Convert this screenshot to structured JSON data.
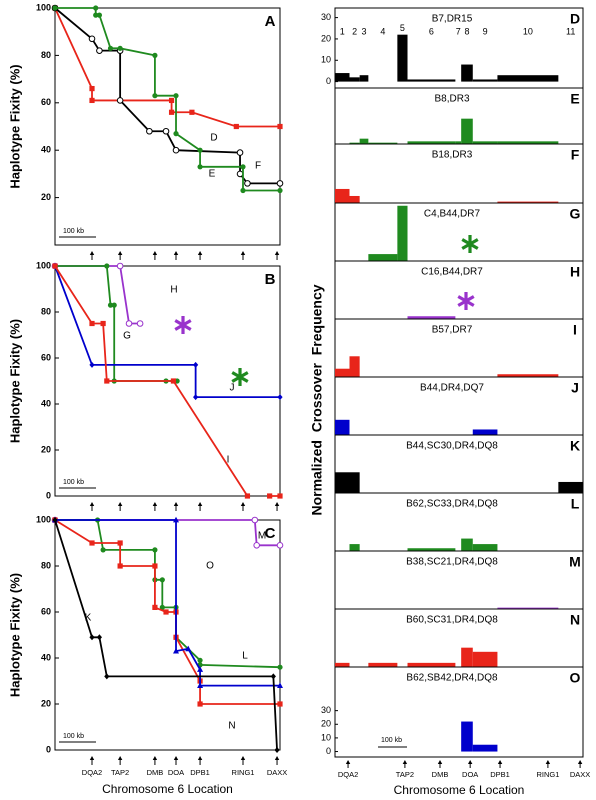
{
  "chart_data": [
    {
      "type": "line",
      "label": "A",
      "ylabel": "Haplotype Fixity (%)",
      "xlim": [
        0,
        608
      ],
      "ylim": [
        0,
        100
      ],
      "yticks": [
        20,
        40,
        60,
        80,
        100
      ],
      "scale_bar": {
        "label": "100 kb",
        "length": 100
      },
      "series": [
        {
          "name": "F",
          "color": "#e8251a",
          "marker": "square",
          "x": [
            0,
            100,
            100,
            315,
            315,
            370,
            490,
            608
          ],
          "values": [
            100,
            66,
            61,
            61,
            56,
            56,
            50,
            50
          ]
        },
        {
          "name": "D",
          "color": "#000000",
          "marker": "open-circle",
          "x": [
            0,
            100,
            120,
            176,
            176,
            255,
            300,
            327,
            500,
            500,
            520,
            608
          ],
          "values": [
            100,
            87,
            82,
            82,
            61,
            48,
            48,
            40,
            39,
            30,
            26,
            26
          ]
        },
        {
          "name": "E",
          "color": "#1f8a1f",
          "marker": "circle",
          "x": [
            0,
            110,
            110,
            120,
            150,
            176,
            270,
            270,
            327,
            327,
            392,
            392,
            508,
            508,
            608
          ],
          "values": [
            100,
            100,
            97,
            97,
            83,
            83,
            80,
            63,
            63,
            47,
            40,
            33,
            33,
            23,
            23
          ]
        }
      ]
    },
    {
      "type": "line",
      "label": "B",
      "ylabel": "Haplotype Fixity (%)",
      "xlim": [
        0,
        608
      ],
      "ylim": [
        0,
        100
      ],
      "yticks": [
        0,
        20,
        40,
        60,
        80,
        100
      ],
      "scale_bar": {
        "label": "100 kb",
        "length": 100
      },
      "series": [
        {
          "name": "H",
          "color": "#9933cc",
          "marker": "open-circle",
          "x": [
            0,
            176,
            200,
            230
          ],
          "values": [
            100,
            100,
            75,
            75
          ]
        },
        {
          "name": "G",
          "color": "#1f8a1f",
          "marker": "circle",
          "x": [
            0,
            140,
            150,
            160,
            160,
            300,
            330
          ],
          "values": [
            100,
            100,
            83,
            83,
            50,
            50,
            50
          ]
        },
        {
          "name": "J",
          "color": "#0000cc",
          "marker": "diamond",
          "x": [
            0,
            100,
            380,
            380,
            608
          ],
          "values": [
            100,
            57,
            57,
            43,
            43
          ]
        },
        {
          "name": "I",
          "color": "#e8251a",
          "marker": "square",
          "x": [
            0,
            100,
            130,
            140,
            320,
            520,
            560,
            580,
            608
          ],
          "values": [
            100,
            75,
            75,
            50,
            50,
            0,
            null,
            0,
            0
          ]
        }
      ]
    },
    {
      "type": "line",
      "label": "C",
      "ylabel": "Haplotype Fixity (%)",
      "xlabel": "Chromosome 6 Location",
      "xlim": [
        0,
        608
      ],
      "ylim": [
        0,
        100
      ],
      "yticks": [
        0,
        20,
        40,
        60,
        80,
        100
      ],
      "scale_bar": {
        "label": "100 kb",
        "length": 100
      },
      "markers": {
        "labels": [
          "DQA2",
          "TAP2",
          "DMB",
          "DOA",
          "DPB1",
          "RING1",
          "DAXX"
        ],
        "x": [
          100,
          176,
          270,
          327,
          392,
          508,
          600
        ]
      },
      "series": [
        {
          "name": "M",
          "color": "#9933cc",
          "marker": "open-circle",
          "x": [
            0,
            540,
            545,
            608
          ],
          "values": [
            100,
            100,
            89,
            89
          ]
        },
        {
          "name": "L",
          "color": "#1f8a1f",
          "marker": "circle",
          "x": [
            0,
            115,
            130,
            270,
            270,
            290,
            290,
            327,
            327,
            392,
            392,
            608
          ],
          "values": [
            100,
            100,
            87,
            87,
            74,
            74,
            62,
            62,
            49,
            39,
            37,
            36
          ]
        },
        {
          "name": "N",
          "color": "#e8251a",
          "marker": "square",
          "x": [
            0,
            100,
            176,
            176,
            270,
            270,
            300,
            327,
            327,
            392,
            392,
            608
          ],
          "values": [
            100,
            90,
            90,
            80,
            80,
            62,
            60,
            60,
            49,
            30,
            20,
            20
          ]
        },
        {
          "name": "O",
          "color": "#0000cc",
          "marker": "triangle",
          "x": [
            0,
            327,
            327,
            360,
            392,
            392,
            608
          ],
          "values": [
            100,
            100,
            43,
            44,
            35,
            28,
            28
          ]
        },
        {
          "name": "K",
          "color": "#000000",
          "marker": "diamond",
          "x": [
            0,
            100,
            120,
            140,
            590,
            600
          ],
          "values": [
            100,
            49,
            49,
            32,
            32,
            0
          ]
        }
      ]
    },
    {
      "type": "bar",
      "ylabel": "Normalized  Crossover  Frequency",
      "xlabel": "Chromosome 6 Location",
      "xlim": [
        0,
        855
      ],
      "bins": [
        0,
        50,
        85,
        115,
        215,
        250,
        415,
        435,
        475,
        560,
        770,
        855
      ],
      "categories": [
        "1",
        "2",
        "3",
        "4",
        "5",
        "6",
        "7",
        "8",
        "9",
        "10",
        "11"
      ],
      "markers": {
        "labels": [
          "DQA2",
          "TAP2",
          "DMB",
          "DOA",
          "DPB1",
          "RING1",
          "DAXX"
        ],
        "x": [
          45,
          241,
          362,
          466,
          569,
          734,
          845
        ]
      },
      "scale_bar": {
        "label": "100 kb",
        "length": 100
      },
      "panels": [
        {
          "label": "D",
          "title": "B7,DR15",
          "color": "#000000",
          "ylim": [
            -3,
            34.5
          ],
          "yticks": [
            0,
            10,
            20,
            30
          ],
          "values": [
            4,
            2,
            3,
            0,
            22,
            1,
            0,
            8,
            1,
            3,
            0
          ]
        },
        {
          "label": "E",
          "title": "B8,DR3",
          "color": "#1f8a1f",
          "ylim": [
            0,
            42
          ],
          "values": [
            0,
            1,
            4,
            1,
            0,
            2,
            2,
            19,
            2,
            2,
            0
          ]
        },
        {
          "label": "F",
          "title": "B18,DR3",
          "color": "#e8251a",
          "ylim": [
            0,
            42
          ],
          "values": [
            10,
            5,
            0,
            0,
            0,
            0,
            0,
            0,
            0,
            1,
            0
          ]
        },
        {
          "label": "G",
          "title": "C4,B44,DR7",
          "color": "#1f8a1f",
          "ylim": [
            0,
            42
          ],
          "values": [
            0,
            0,
            0,
            5,
            40,
            0,
            0,
            0,
            0,
            0,
            0
          ]
        },
        {
          "label": "H",
          "title": "C16,B44,DR7",
          "color": "#9933cc",
          "ylim": [
            0,
            42
          ],
          "values": [
            0,
            0,
            0,
            0,
            0,
            2,
            0,
            0,
            0,
            0,
            0
          ]
        },
        {
          "label": "I",
          "title": "B57,DR7",
          "color": "#e8251a",
          "ylim": [
            0,
            42
          ],
          "values": [
            6,
            15,
            0,
            0,
            0,
            0,
            0,
            0,
            0,
            2,
            0
          ]
        },
        {
          "label": "J",
          "title": "B44,DR4,DQ7",
          "color": "#0000cc",
          "ylim": [
            0,
            42
          ],
          "values": [
            11,
            0,
            0,
            0,
            0,
            0,
            0,
            0,
            4,
            0,
            0
          ]
        },
        {
          "label": "K",
          "title": "B44,SC30,DR4,DQ8",
          "color": "#000000",
          "ylim": [
            0,
            42
          ],
          "values": [
            15,
            15,
            0,
            0,
            0,
            0,
            0,
            0,
            0,
            0,
            8
          ]
        },
        {
          "label": "L",
          "title": "B62,SC33,DR4,DQ8",
          "color": "#1f8a1f",
          "ylim": [
            0,
            42
          ],
          "values": [
            0,
            5,
            0,
            0,
            0,
            2,
            0,
            9,
            5,
            0,
            0
          ]
        },
        {
          "label": "M",
          "title": "B38,SC21,DR4,DQ8",
          "color": "#9933cc",
          "ylim": [
            0,
            42
          ],
          "values": [
            0,
            0,
            0,
            0,
            0,
            0,
            0,
            0,
            0,
            1,
            0
          ]
        },
        {
          "label": "N",
          "title": "B60,SC31,DR4,DQ8",
          "color": "#e8251a",
          "ylim": [
            0,
            42
          ],
          "values": [
            3,
            0,
            0,
            3,
            0,
            3,
            0,
            14,
            11,
            0,
            0
          ]
        },
        {
          "label": "O",
          "title": "B62,SB42,DR4,DQ8",
          "color": "#0000cc",
          "ylim": [
            -4,
            62
          ],
          "yticks": [
            0,
            10,
            20,
            30
          ],
          "values": [
            0,
            0,
            0,
            0,
            0,
            0,
            0,
            22,
            5,
            0,
            0
          ]
        }
      ]
    }
  ]
}
